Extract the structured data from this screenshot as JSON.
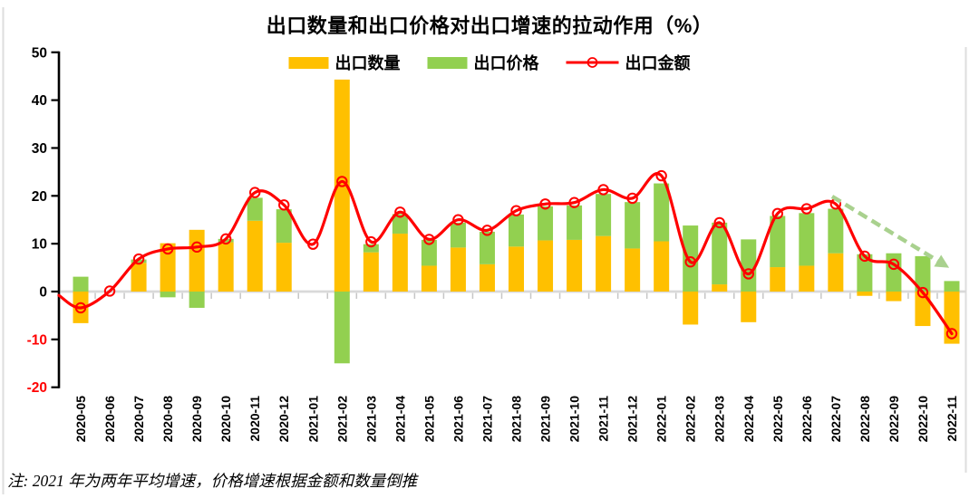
{
  "title": "出口数量和出口价格对出口增速的拉动作用（%）",
  "note": "注: 2021 年为两年平均增速，价格增速根据金额和数量倒推",
  "legend": [
    {
      "label": "出口数量",
      "type": "bar",
      "color": "#FFC000"
    },
    {
      "label": "出口价格",
      "type": "bar",
      "color": "#92D050"
    },
    {
      "label": "出口金额",
      "type": "line",
      "color": "#FF0000"
    }
  ],
  "colors": {
    "quantity_bar": "#FFC000",
    "price_bar": "#92D050",
    "value_line": "#FF0000",
    "zero_line": "#D9D9D9",
    "category_tick": "#C6C6C6",
    "axis": "#000000",
    "negative_tick_label": "#FF0000",
    "trend_arrow": "#A9D18E",
    "panel_edge": "#DEDEDE"
  },
  "chart_data": {
    "type": "bar",
    "subtype": "stacked bars with overlaid line (combo)",
    "title": "出口数量和出口价格对出口增速的拉动作用（%）",
    "xlabel": "",
    "ylabel": "",
    "ylim": [
      -20,
      50
    ],
    "yticks": [
      50,
      40,
      30,
      20,
      10,
      0,
      -10,
      -20
    ],
    "grid": false,
    "legend_position": "top",
    "categories": [
      "2020-05",
      "2020-06",
      "2020-07",
      "2020-08",
      "2020-09",
      "2020-10",
      "2020-11",
      "2020-12",
      "2021-01",
      "2021-02",
      "2021-03",
      "2021-04",
      "2021-05",
      "2021-06",
      "2021-07",
      "2021-08",
      "2021-09",
      "2021-10",
      "2021-11",
      "2021-12",
      "2022-01",
      "2022-02",
      "2022-03",
      "2022-04",
      "2022-05",
      "2022-06",
      "2022-07",
      "2022-08",
      "2022-09",
      "2022-10",
      "2022-11"
    ],
    "series": [
      {
        "name": "出口数量",
        "type": "bar",
        "color": "#FFC000",
        "values": [
          -6.6,
          0,
          6.0,
          10.1,
          12.9,
          10.3,
          14.8,
          10.2,
          0,
          44.3,
          8.2,
          12.1,
          5.4,
          9.2,
          5.7,
          9.4,
          10.7,
          10.8,
          11.6,
          9.0,
          10.5,
          -6.9,
          1.5,
          -6.4,
          5.1,
          5.4,
          8.0,
          -0.9,
          -2.0,
          -7.2,
          -10.9
        ]
      },
      {
        "name": "出口价格",
        "type": "bar",
        "color": "#92D050",
        "values": [
          3.1,
          0,
          0.7,
          -1.2,
          -3.4,
          0.7,
          4.8,
          7.0,
          0,
          -15.0,
          1.7,
          4.1,
          5.4,
          5.2,
          6.8,
          6.7,
          7.1,
          7.2,
          8.8,
          9.7,
          12.1,
          13.8,
          12.9,
          10.9,
          10.7,
          11.0,
          9.3,
          7.8,
          8.0,
          7.4,
          2.2
        ]
      },
      {
        "name": "出口金额",
        "type": "line",
        "color": "#FF0000",
        "marker": "open-circle",
        "values": [
          -3.4,
          0.1,
          6.8,
          8.9,
          9.3,
          11.0,
          20.7,
          18.1,
          9.9,
          23.0,
          10.4,
          16.6,
          10.9,
          15.0,
          12.8,
          16.9,
          18.3,
          18.6,
          21.3,
          19.5,
          24.2,
          6.2,
          14.4,
          3.7,
          16.3,
          17.3,
          18.3,
          7.4,
          5.7,
          -0.2,
          -8.8
        ]
      }
    ],
    "line_edge_start_value": -0.8,
    "annotation_arrow": {
      "style": "dashed",
      "color": "#A9D18E",
      "from_category": "2022-07",
      "to_category": "2022-10",
      "direction": "down-right"
    }
  }
}
